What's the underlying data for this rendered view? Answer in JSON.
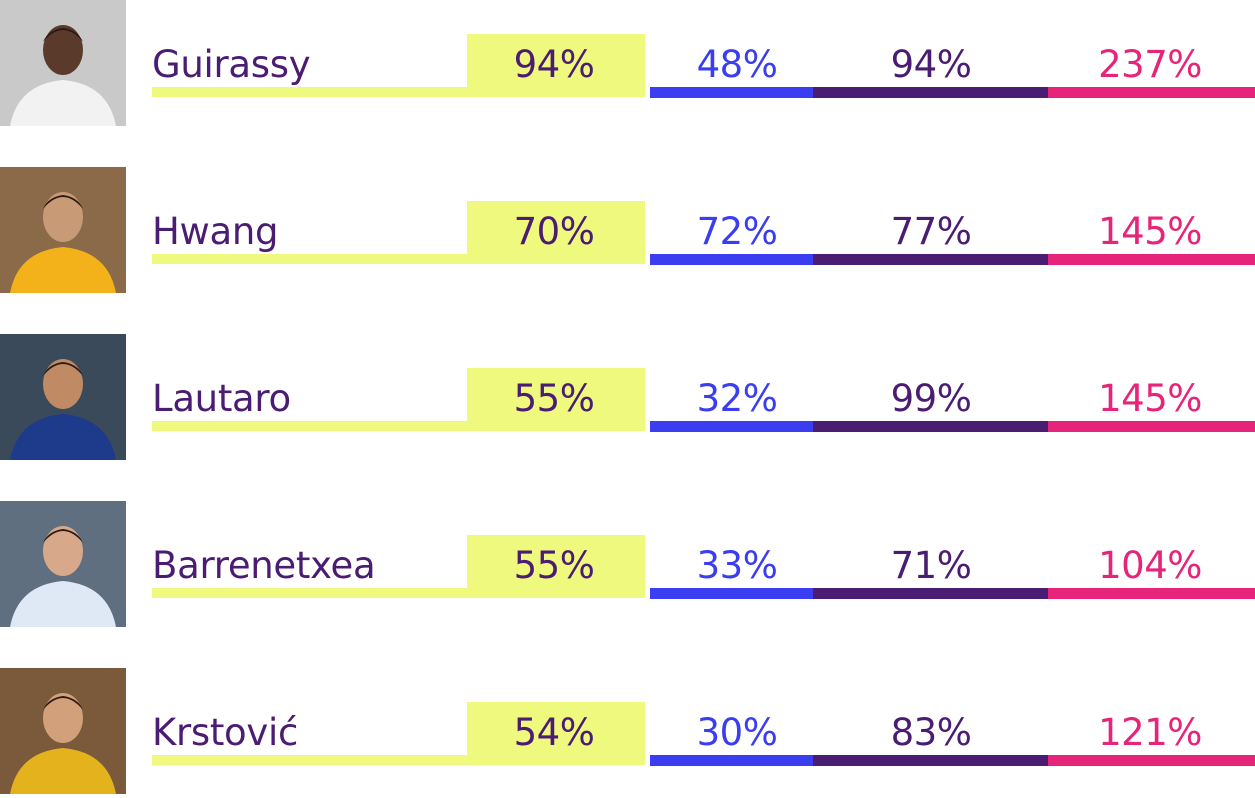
{
  "chart_data": {
    "type": "table",
    "players": [
      {
        "name": "Guirassy",
        "values": [
          "94%",
          "48%",
          "94%",
          "237%"
        ]
      },
      {
        "name": "Hwang",
        "values": [
          "70%",
          "72%",
          "77%",
          "145%"
        ]
      },
      {
        "name": "Lautaro",
        "values": [
          "55%",
          "32%",
          "99%",
          "145%"
        ]
      },
      {
        "name": "Barrenetxea",
        "values": [
          "55%",
          "33%",
          "71%",
          "104%"
        ]
      },
      {
        "name": "Krstović",
        "values": [
          "54%",
          "30%",
          "83%",
          "121%"
        ]
      }
    ],
    "colors": {
      "name_text": "#4a1d73",
      "highlight": "#eef97e",
      "col2": "#3b3ef0",
      "col3": "#4a1d73",
      "col4": "#e6257a"
    }
  },
  "photos": [
    {
      "icon": "player-photo",
      "bg": "#c9c9c9",
      "kit": "#f2f2f2",
      "skin": "#5a3a2a"
    },
    {
      "icon": "player-photo",
      "bg": "#8b6a4a",
      "kit": "#f3b21a",
      "skin": "#c99a76"
    },
    {
      "icon": "player-photo",
      "bg": "#3b4a5a",
      "kit": "#1e3a8a",
      "skin": "#c08a64"
    },
    {
      "icon": "player-photo",
      "bg": "#5f6f80",
      "kit": "#dfe8f5",
      "skin": "#d7a98a"
    },
    {
      "icon": "player-photo",
      "bg": "#7a5a3a",
      "kit": "#e3b21c",
      "skin": "#d3a07c"
    }
  ]
}
